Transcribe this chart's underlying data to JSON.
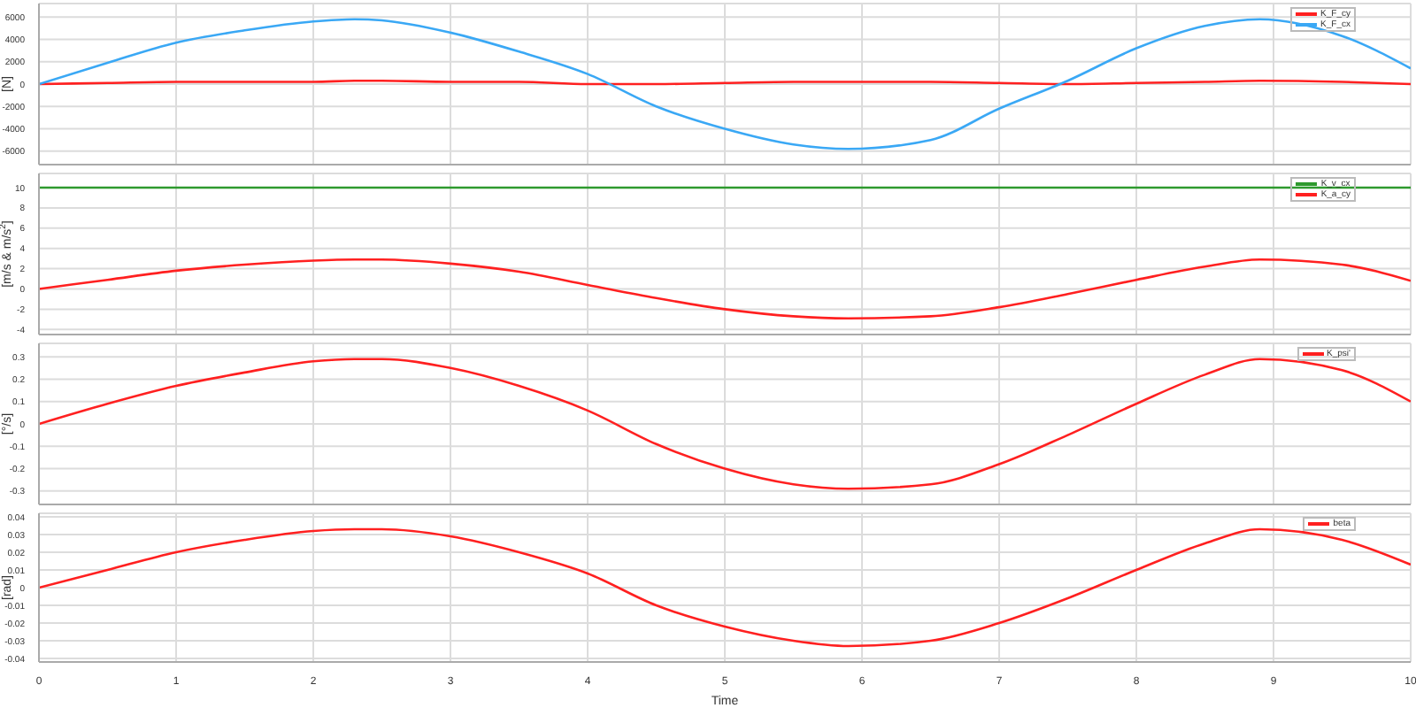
{
  "chart_data": [
    {
      "type": "line",
      "ylabel": "[N]",
      "x": [
        0,
        0.5,
        1,
        1.5,
        2,
        2.3,
        2.5,
        3,
        3.5,
        4,
        4.5,
        5,
        5.5,
        5.9,
        6.5,
        7,
        7.5,
        8,
        8.5,
        8.9,
        9.5,
        10
      ],
      "xlim": [
        0,
        10
      ],
      "xticks": [
        0,
        1,
        2,
        3,
        4,
        5,
        6,
        7,
        8,
        9,
        10
      ],
      "ylim": [
        -7200,
        7200
      ],
      "yticks": [
        -6000,
        -4000,
        -2000,
        0,
        2000,
        4000,
        6000
      ],
      "grid": true,
      "legend": "top right",
      "tick_labels": "y",
      "series": [
        {
          "name": "K_F_cy",
          "color": "#ff2020",
          "values": [
            0,
            100,
            200,
            200,
            200,
            300,
            300,
            200,
            200,
            0,
            0,
            100,
            200,
            200,
            200,
            100,
            0,
            100,
            200,
            300,
            200,
            0
          ]
        },
        {
          "name": "K_F_cx",
          "color": "#3aa8f5",
          "values": [
            0,
            1900,
            3700,
            4800,
            5600,
            5800,
            5700,
            4600,
            2900,
            900,
            -2000,
            -4000,
            -5400,
            -5800,
            -5000,
            -2200,
            300,
            3200,
            5200,
            5800,
            4300,
            1400
          ]
        }
      ]
    },
    {
      "type": "line",
      "ylabel": "[m/s & m/s$^{2}$]",
      "x": [
        0,
        0.5,
        1,
        1.5,
        2,
        2.3,
        2.5,
        3,
        3.5,
        4,
        4.5,
        5,
        5.5,
        5.9,
        6.5,
        7,
        7.5,
        8,
        8.5,
        8.9,
        9.5,
        10
      ],
      "xlim": [
        0,
        10
      ],
      "xticks": [
        0,
        1,
        2,
        3,
        4,
        5,
        6,
        7,
        8,
        9,
        10
      ],
      "ylim": [
        -4.5,
        11.4
      ],
      "yticks": [
        -4,
        -2,
        0,
        2,
        4,
        6,
        8,
        10
      ],
      "grid": true,
      "legend": "top right",
      "tick_labels": "y",
      "series": [
        {
          "name": "K_v_cx",
          "color": "#2e9a2e",
          "values": [
            10,
            10,
            10,
            10,
            10,
            10,
            10,
            10,
            10,
            10,
            10,
            10,
            10,
            10,
            10,
            10,
            10,
            10,
            10,
            10,
            10,
            10
          ]
        },
        {
          "name": "K_a_cy",
          "color": "#ff2020",
          "values": [
            0,
            0.9,
            1.8,
            2.4,
            2.8,
            2.9,
            2.9,
            2.5,
            1.7,
            0.4,
            -0.9,
            -2.0,
            -2.7,
            -2.9,
            -2.7,
            -1.8,
            -0.5,
            0.9,
            2.2,
            2.9,
            2.4,
            0.8
          ]
        }
      ]
    },
    {
      "type": "line",
      "ylabel": "[°/s]",
      "x": [
        0,
        0.5,
        1,
        1.5,
        2,
        2.3,
        2.5,
        3,
        3.5,
        4,
        4.5,
        5,
        5.5,
        5.9,
        6.5,
        7,
        7.5,
        8,
        8.5,
        8.9,
        9.5,
        10
      ],
      "xlim": [
        0,
        10
      ],
      "xticks": [
        0,
        1,
        2,
        3,
        4,
        5,
        6,
        7,
        8,
        9,
        10
      ],
      "ylim": [
        -0.36,
        0.36
      ],
      "yticks": [
        -0.3,
        -0.2,
        -0.1,
        0,
        0.1,
        0.2,
        0.3
      ],
      "grid": true,
      "legend": "top right",
      "tick_labels": "y",
      "series": [
        {
          "name": "K_psi'",
          "color": "#ff2020",
          "values": [
            0,
            0.09,
            0.17,
            0.23,
            0.28,
            0.29,
            0.29,
            0.25,
            0.17,
            0.06,
            -0.09,
            -0.2,
            -0.27,
            -0.29,
            -0.27,
            -0.18,
            -0.05,
            0.09,
            0.22,
            0.29,
            0.24,
            0.1
          ]
        }
      ]
    },
    {
      "type": "line",
      "ylabel": "[rad]",
      "xlabel": "Time",
      "x": [
        0,
        0.5,
        1,
        1.5,
        2,
        2.3,
        2.5,
        3,
        3.5,
        4,
        4.5,
        5,
        5.5,
        5.9,
        6.5,
        7,
        7.5,
        8,
        8.5,
        8.9,
        9.5,
        10
      ],
      "xlim": [
        0,
        10
      ],
      "xticks": [
        0,
        1,
        2,
        3,
        4,
        5,
        6,
        7,
        8,
        9,
        10
      ],
      "ylim": [
        -0.042,
        0.042
      ],
      "yticks": [
        -0.04,
        -0.03,
        -0.02,
        -0.01,
        0,
        0.01,
        0.02,
        0.03,
        0.04
      ],
      "grid": true,
      "legend": "top right",
      "series": [
        {
          "name": "beta",
          "color": "#ff2020",
          "values": [
            0,
            0.01,
            0.02,
            0.027,
            0.032,
            0.033,
            0.033,
            0.029,
            0.02,
            0.008,
            -0.01,
            -0.022,
            -0.03,
            -0.033,
            -0.03,
            -0.02,
            -0.006,
            0.01,
            0.025,
            0.033,
            0.027,
            0.013
          ]
        }
      ]
    }
  ]
}
